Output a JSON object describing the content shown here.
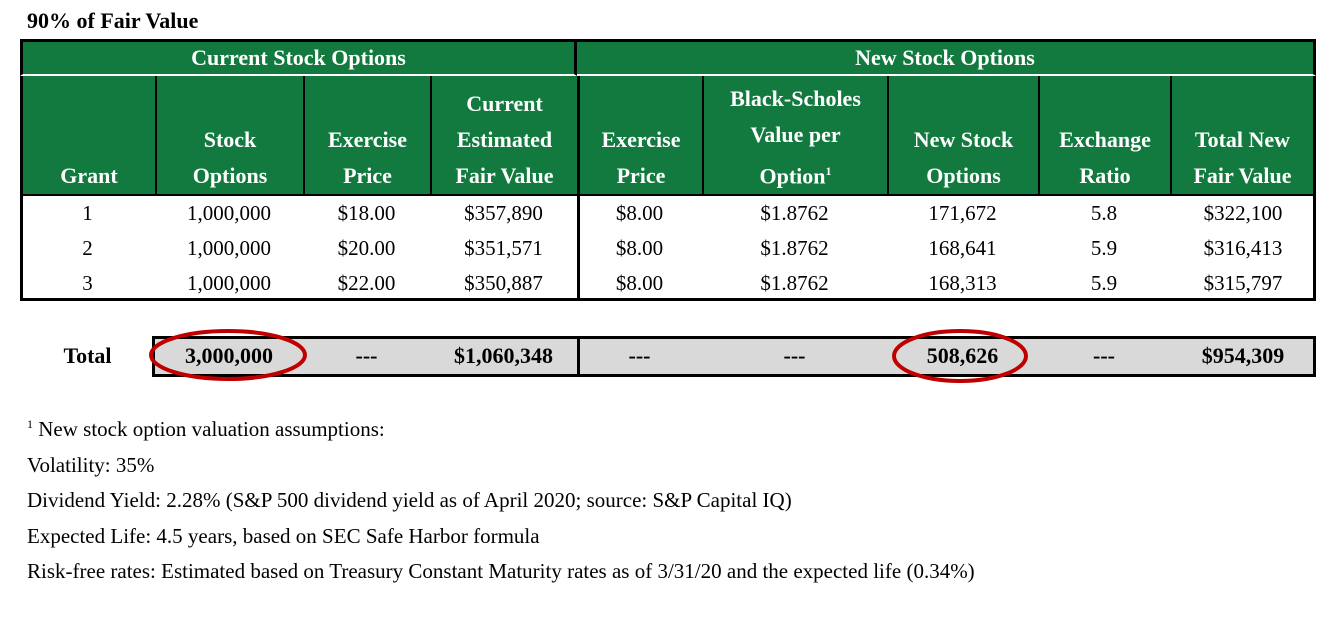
{
  "title": "90%  of Fair Value",
  "table": {
    "groups": [
      "Current Stock Options",
      "New Stock Options"
    ],
    "columns": [
      [
        "Grant"
      ],
      [
        "Stock",
        "Options"
      ],
      [
        "Exercise",
        "Price"
      ],
      [
        "Current",
        "Estimated",
        "Fair Value"
      ],
      [
        "Exercise",
        "Price"
      ],
      [
        "Black-Scholes",
        "Value per",
        "Option"
      ],
      [
        "New Stock",
        "Options"
      ],
      [
        "Exchange",
        "Ratio"
      ],
      [
        "Total New",
        "Fair Value"
      ]
    ],
    "rows": [
      [
        "1",
        "1,000,000",
        "$18.00",
        "$357,890",
        "$8.00",
        "$1.8762",
        "171,672",
        "5.8",
        "$322,100"
      ],
      [
        "2",
        "1,000,000",
        "$20.00",
        "$351,571",
        "$8.00",
        "$1.8762",
        "168,641",
        "5.9",
        "$316,413"
      ],
      [
        "3",
        "1,000,000",
        "$22.00",
        "$350,887",
        "$8.00",
        "$1.8762",
        "168,313",
        "5.9",
        "$315,797"
      ]
    ],
    "total": [
      "Total",
      "3,000,000",
      "---",
      "$1,060,348",
      "---",
      "---",
      "508,626",
      "---",
      "$954,309"
    ]
  },
  "footnotes": {
    "marker": "1",
    "lines": [
      " New stock option valuation assumptions:",
      "Volatility: 35%",
      "Dividend Yield: 2.28% (S&P 500 dividend yield as of April 2020; source: S&P Capital IQ)",
      "Expected Life: 4.5 years, based on SEC Safe Harbor formula",
      "Risk-free rates: Estimated based on Treasury Constant Maturity rates as of 3/31/20 and the expected life (0.34%)"
    ]
  }
}
